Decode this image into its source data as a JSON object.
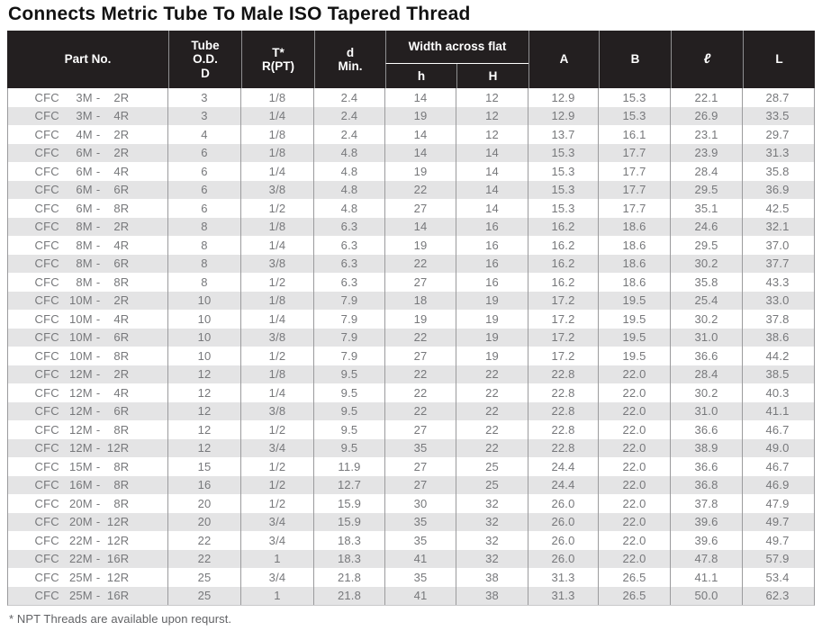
{
  "title": "Connects Metric Tube To Male ISO Tapered Thread",
  "footnote": "* NPT Threads are available upon requrst.",
  "colors": {
    "header_bg": "#231f20",
    "header_text": "#ffffff",
    "stripe": "#e4e4e5",
    "grid_line": "#9b9b9d",
    "data_text": "#77787b"
  },
  "table": {
    "headers": {
      "part_no": "Part No.",
      "tube_od": "Tube\nO.D.\nD",
      "t_rpt": "T*\nR(PT)",
      "d_min": "d\nMin.",
      "width_across_flat": "Width across flat",
      "h_lower": "h",
      "h_upper": "H",
      "a": "A",
      "b": "B",
      "ell": "ℓ",
      "l": "L"
    },
    "rows": [
      {
        "part": "CFC 3M - 2R",
        "tube": "3",
        "t": "1/8",
        "d": "2.4",
        "h": "14",
        "H": "12",
        "A": "12.9",
        "B": "15.3",
        "ell": "22.1",
        "L": "28.7"
      },
      {
        "part": "CFC 3M - 4R",
        "tube": "3",
        "t": "1/4",
        "d": "2.4",
        "h": "19",
        "H": "12",
        "A": "12.9",
        "B": "15.3",
        "ell": "26.9",
        "L": "33.5"
      },
      {
        "part": "CFC 4M - 2R",
        "tube": "4",
        "t": "1/8",
        "d": "2.4",
        "h": "14",
        "H": "12",
        "A": "13.7",
        "B": "16.1",
        "ell": "23.1",
        "L": "29.7"
      },
      {
        "part": "CFC 6M - 2R",
        "tube": "6",
        "t": "1/8",
        "d": "4.8",
        "h": "14",
        "H": "14",
        "A": "15.3",
        "B": "17.7",
        "ell": "23.9",
        "L": "31.3"
      },
      {
        "part": "CFC 6M - 4R",
        "tube": "6",
        "t": "1/4",
        "d": "4.8",
        "h": "19",
        "H": "14",
        "A": "15.3",
        "B": "17.7",
        "ell": "28.4",
        "L": "35.8"
      },
      {
        "part": "CFC 6M - 6R",
        "tube": "6",
        "t": "3/8",
        "d": "4.8",
        "h": "22",
        "H": "14",
        "A": "15.3",
        "B": "17.7",
        "ell": "29.5",
        "L": "36.9"
      },
      {
        "part": "CFC 6M - 8R",
        "tube": "6",
        "t": "1/2",
        "d": "4.8",
        "h": "27",
        "H": "14",
        "A": "15.3",
        "B": "17.7",
        "ell": "35.1",
        "L": "42.5"
      },
      {
        "part": "CFC 8M - 2R",
        "tube": "8",
        "t": "1/8",
        "d": "6.3",
        "h": "14",
        "H": "16",
        "A": "16.2",
        "B": "18.6",
        "ell": "24.6",
        "L": "32.1"
      },
      {
        "part": "CFC 8M - 4R",
        "tube": "8",
        "t": "1/4",
        "d": "6.3",
        "h": "19",
        "H": "16",
        "A": "16.2",
        "B": "18.6",
        "ell": "29.5",
        "L": "37.0"
      },
      {
        "part": "CFC 8M - 6R",
        "tube": "8",
        "t": "3/8",
        "d": "6.3",
        "h": "22",
        "H": "16",
        "A": "16.2",
        "B": "18.6",
        "ell": "30.2",
        "L": "37.7"
      },
      {
        "part": "CFC 8M - 8R",
        "tube": "8",
        "t": "1/2",
        "d": "6.3",
        "h": "27",
        "H": "16",
        "A": "16.2",
        "B": "18.6",
        "ell": "35.8",
        "L": "43.3"
      },
      {
        "part": "CFC 10M - 2R",
        "tube": "10",
        "t": "1/8",
        "d": "7.9",
        "h": "18",
        "H": "19",
        "A": "17.2",
        "B": "19.5",
        "ell": "25.4",
        "L": "33.0"
      },
      {
        "part": "CFC 10M - 4R",
        "tube": "10",
        "t": "1/4",
        "d": "7.9",
        "h": "19",
        "H": "19",
        "A": "17.2",
        "B": "19.5",
        "ell": "30.2",
        "L": "37.8"
      },
      {
        "part": "CFC 10M - 6R",
        "tube": "10",
        "t": "3/8",
        "d": "7.9",
        "h": "22",
        "H": "19",
        "A": "17.2",
        "B": "19.5",
        "ell": "31.0",
        "L": "38.6"
      },
      {
        "part": "CFC 10M - 8R",
        "tube": "10",
        "t": "1/2",
        "d": "7.9",
        "h": "27",
        "H": "19",
        "A": "17.2",
        "B": "19.5",
        "ell": "36.6",
        "L": "44.2"
      },
      {
        "part": "CFC 12M - 2R",
        "tube": "12",
        "t": "1/8",
        "d": "9.5",
        "h": "22",
        "H": "22",
        "A": "22.8",
        "B": "22.0",
        "ell": "28.4",
        "L": "38.5"
      },
      {
        "part": "CFC 12M - 4R",
        "tube": "12",
        "t": "1/4",
        "d": "9.5",
        "h": "22",
        "H": "22",
        "A": "22.8",
        "B": "22.0",
        "ell": "30.2",
        "L": "40.3"
      },
      {
        "part": "CFC 12M - 6R",
        "tube": "12",
        "t": "3/8",
        "d": "9.5",
        "h": "22",
        "H": "22",
        "A": "22.8",
        "B": "22.0",
        "ell": "31.0",
        "L": "41.1"
      },
      {
        "part": "CFC 12M - 8R",
        "tube": "12",
        "t": "1/2",
        "d": "9.5",
        "h": "27",
        "H": "22",
        "A": "22.8",
        "B": "22.0",
        "ell": "36.6",
        "L": "46.7"
      },
      {
        "part": "CFC 12M - 12R",
        "tube": "12",
        "t": "3/4",
        "d": "9.5",
        "h": "35",
        "H": "22",
        "A": "22.8",
        "B": "22.0",
        "ell": "38.9",
        "L": "49.0"
      },
      {
        "part": "CFC 15M - 8R",
        "tube": "15",
        "t": "1/2",
        "d": "11.9",
        "h": "27",
        "H": "25",
        "A": "24.4",
        "B": "22.0",
        "ell": "36.6",
        "L": "46.7"
      },
      {
        "part": "CFC 16M - 8R",
        "tube": "16",
        "t": "1/2",
        "d": "12.7",
        "h": "27",
        "H": "25",
        "A": "24.4",
        "B": "22.0",
        "ell": "36.8",
        "L": "46.9"
      },
      {
        "part": "CFC 20M - 8R",
        "tube": "20",
        "t": "1/2",
        "d": "15.9",
        "h": "30",
        "H": "32",
        "A": "26.0",
        "B": "22.0",
        "ell": "37.8",
        "L": "47.9"
      },
      {
        "part": "CFC 20M - 12R",
        "tube": "20",
        "t": "3/4",
        "d": "15.9",
        "h": "35",
        "H": "32",
        "A": "26.0",
        "B": "22.0",
        "ell": "39.6",
        "L": "49.7"
      },
      {
        "part": "CFC 22M - 12R",
        "tube": "22",
        "t": "3/4",
        "d": "18.3",
        "h": "35",
        "H": "32",
        "A": "26.0",
        "B": "22.0",
        "ell": "39.6",
        "L": "49.7"
      },
      {
        "part": "CFC 22M - 16R",
        "tube": "22",
        "t": "1",
        "d": "18.3",
        "h": "41",
        "H": "32",
        "A": "26.0",
        "B": "22.0",
        "ell": "47.8",
        "L": "57.9"
      },
      {
        "part": "CFC 25M - 12R",
        "tube": "25",
        "t": "3/4",
        "d": "21.8",
        "h": "35",
        "H": "38",
        "A": "31.3",
        "B": "26.5",
        "ell": "41.1",
        "L": "53.4"
      },
      {
        "part": "CFC 25M - 16R",
        "tube": "25",
        "t": "1",
        "d": "21.8",
        "h": "41",
        "H": "38",
        "A": "31.3",
        "B": "26.5",
        "ell": "50.0",
        "L": "62.3"
      }
    ]
  }
}
